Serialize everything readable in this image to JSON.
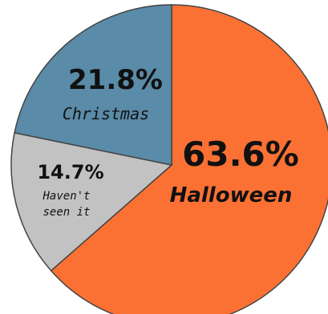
{
  "chart_data": {
    "type": "pie",
    "title": "",
    "slices": [
      {
        "label": "Halloween",
        "value": 63.6,
        "value_label": "63.6%",
        "color": "#fb7134"
      },
      {
        "label": "Haven't seen it",
        "value": 14.7,
        "value_label": "14.7%",
        "color": "#c2c2c2"
      },
      {
        "label": "Christmas",
        "value": 21.8,
        "value_label": "21.8%",
        "color": "#5a8ba8"
      }
    ],
    "start_angle_deg": 0,
    "direction": "clockwise",
    "legend": "none"
  }
}
